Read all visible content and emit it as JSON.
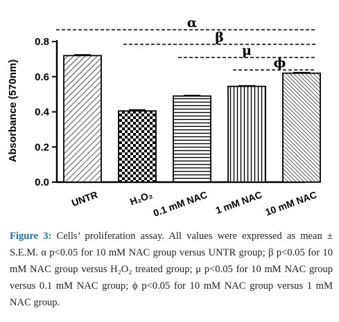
{
  "chart_data": {
    "type": "bar",
    "ylabel": "Absorbance (570nm)",
    "ylim": [
      0,
      0.8
    ],
    "yticks": [
      "0.0",
      "0.2",
      "0.4",
      "0.6",
      "0.8"
    ],
    "categories": [
      "UNTR",
      "H₂O₂",
      "0.1 mM NAC",
      "1 mM NAC",
      "10 mM NAC"
    ],
    "values": [
      0.72,
      0.405,
      0.49,
      0.545,
      0.62
    ],
    "errors": [
      0.005,
      0.007,
      0.004,
      0.004,
      0.004
    ],
    "patterns": [
      "diagonal-lines",
      "checkerboard",
      "horizontal-lines",
      "vertical-lines",
      "diagonal-dense"
    ],
    "significance": [
      {
        "symbol": "α",
        "from": 0,
        "to": 4
      },
      {
        "symbol": "β",
        "from": 1,
        "to": 4
      },
      {
        "symbol": "μ",
        "from": 2,
        "to": 4
      },
      {
        "symbol": "ϕ",
        "from": 3,
        "to": 4
      }
    ]
  },
  "caption": {
    "label": "Figure 3:",
    "text": " Cells’ proliferation assay. All values were expressed as mean ± S.E.M. α p<0.05 for 10 mM NAC group versus UNTR group; β p<0.05 for 10 mM NAC group versus H₂O₂ treated group; μ p<0.05 for 10 mM NAC group versus 0.1 mM NAC group; ϕ p<0.05 for 10 mM NAC group versus 1 mM NAC group."
  }
}
